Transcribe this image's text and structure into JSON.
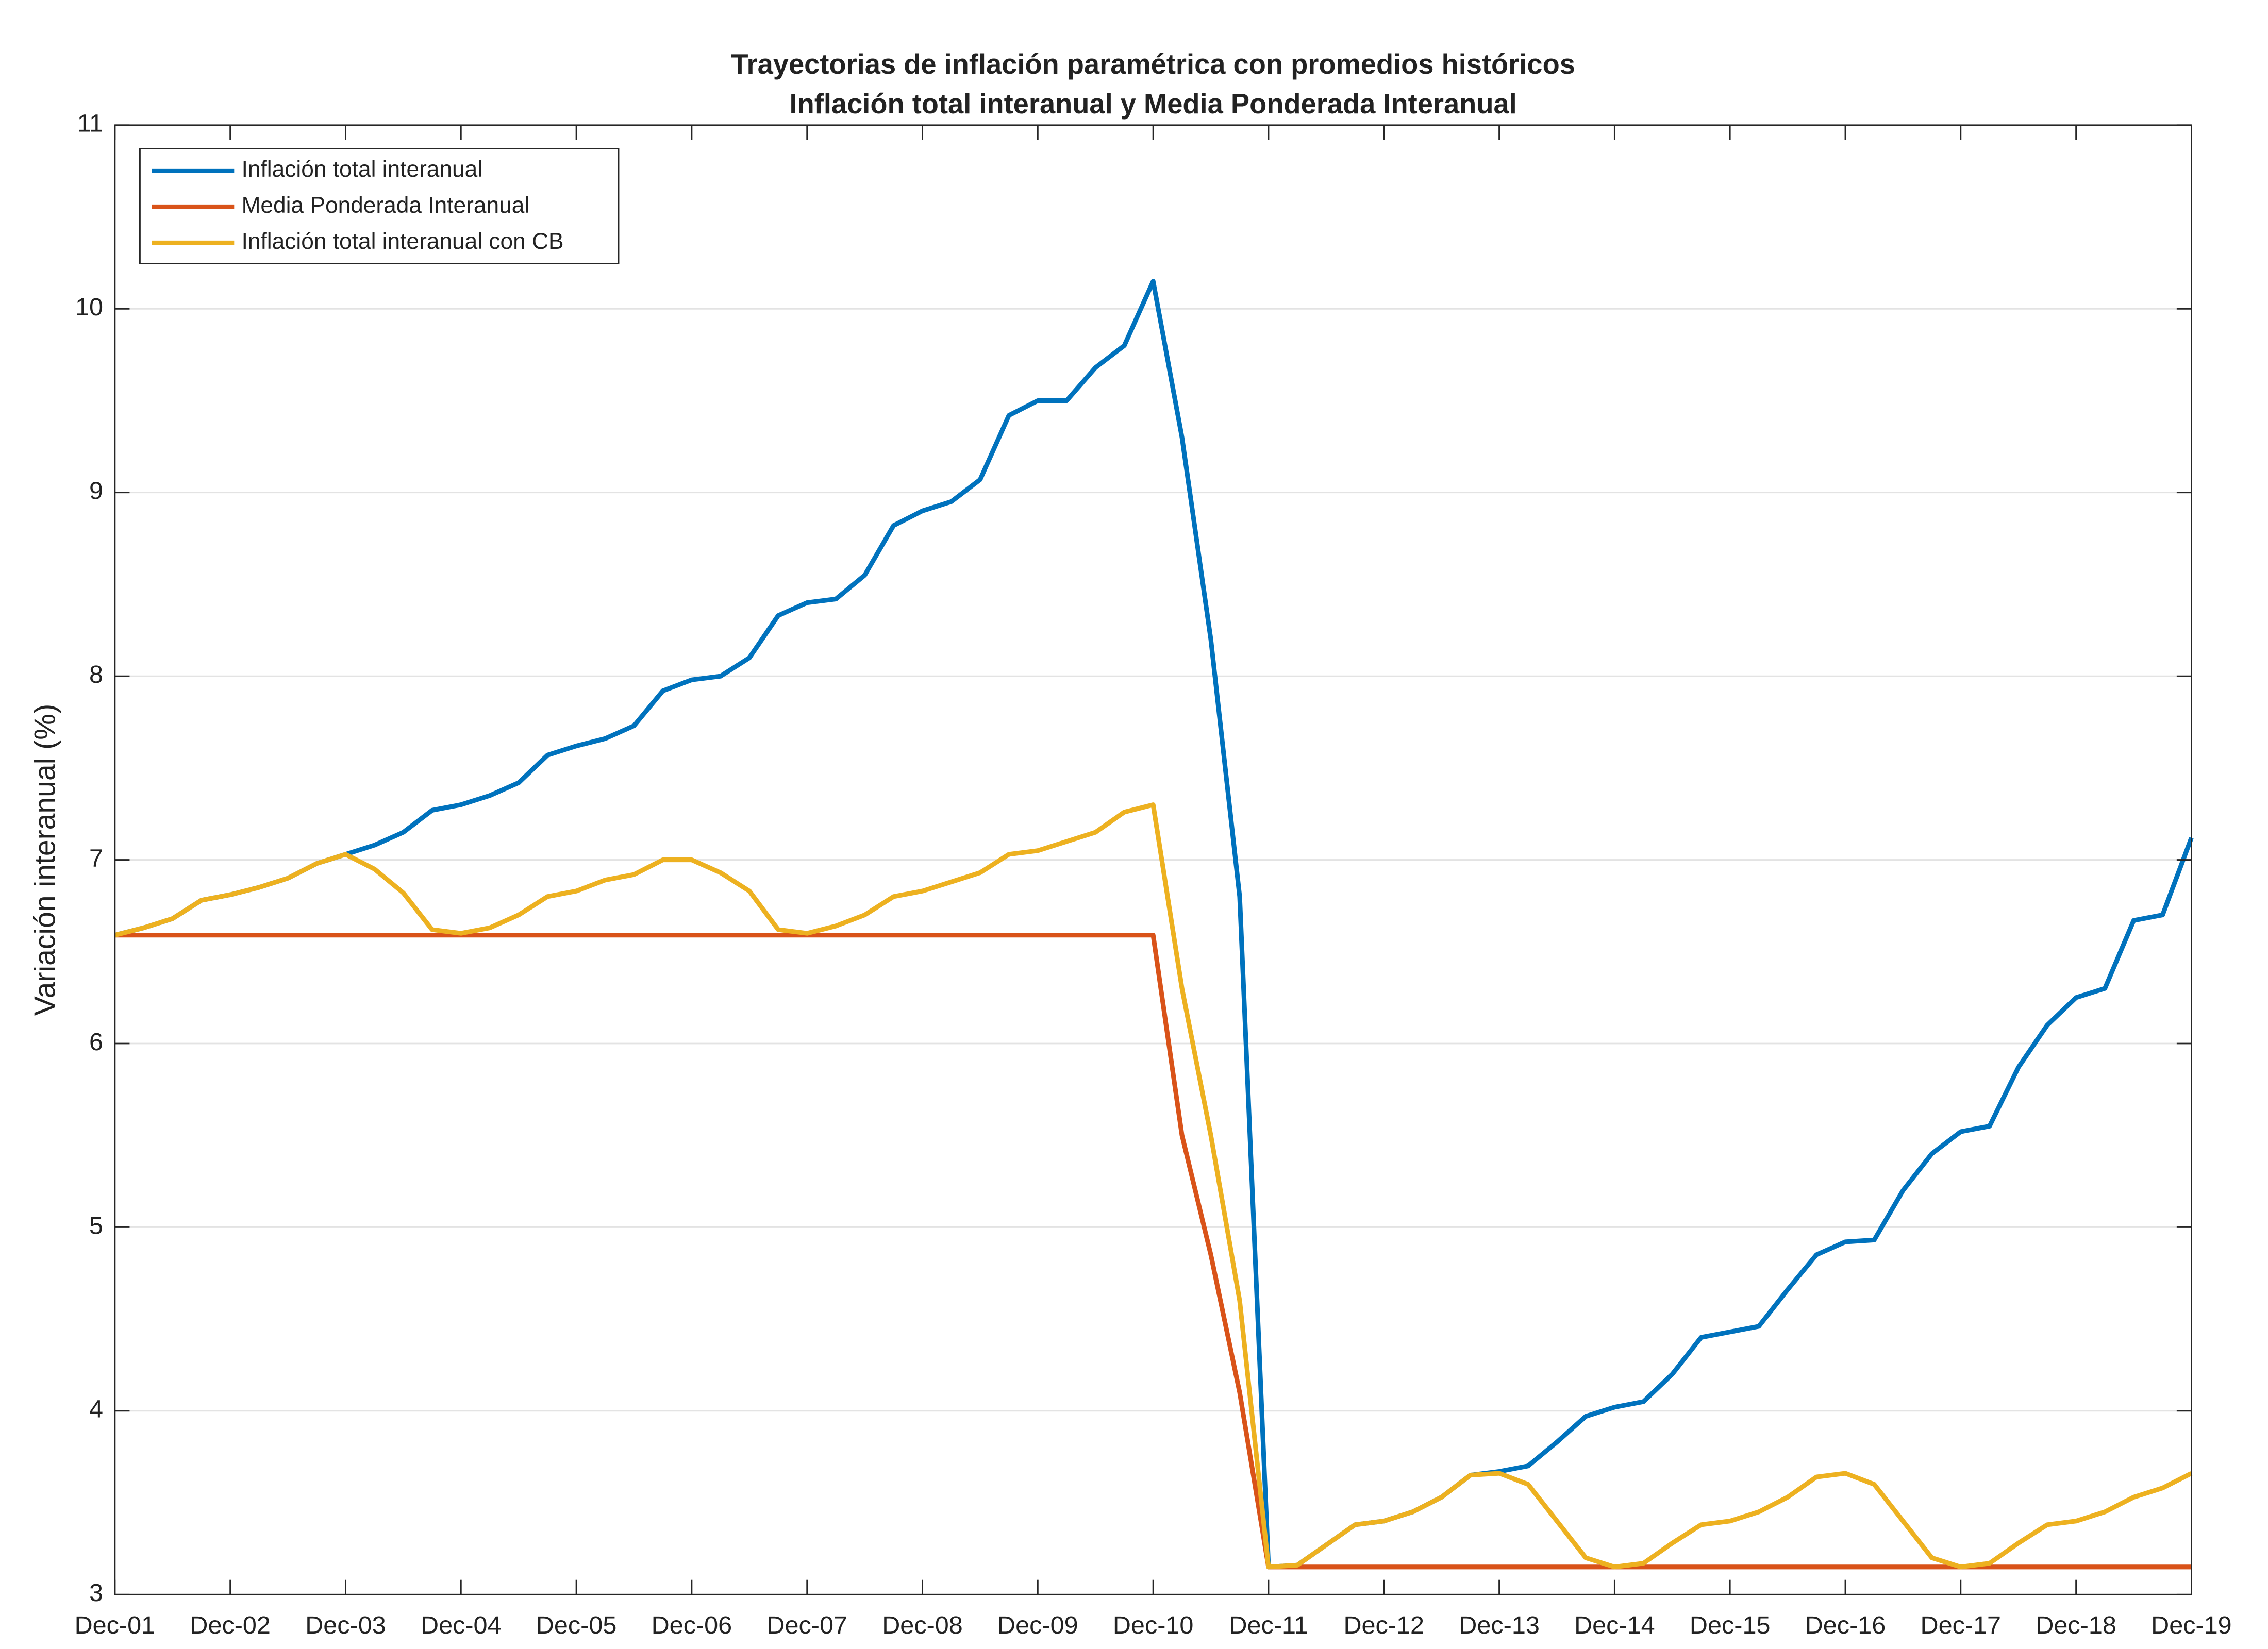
{
  "chart_data": {
    "type": "line",
    "title": "Trayectorias de inflación paramétrica con promedios históricos",
    "subtitle": "Inflación total interanual y Media Ponderada Interanual",
    "y_label": "Variación interanual (%)",
    "categories": [
      "Dec-01",
      null,
      null,
      null,
      "Dec-02",
      null,
      null,
      null,
      "Dec-03",
      null,
      null,
      null,
      "Dec-04",
      null,
      null,
      null,
      "Dec-05",
      null,
      null,
      null,
      "Dec-06",
      null,
      null,
      null,
      "Dec-07",
      null,
      null,
      null,
      "Dec-08",
      null,
      null,
      null,
      "Dec-09",
      null,
      null,
      null,
      "Dec-10",
      null,
      null,
      null,
      "Dec-11",
      null,
      null,
      null,
      "Dec-12",
      null,
      null,
      null,
      "Dec-13",
      null,
      null,
      null,
      "Dec-14",
      null,
      null,
      null,
      "Dec-15",
      null,
      null,
      null,
      "Dec-16",
      null,
      null,
      null,
      "Dec-17",
      null,
      null,
      null,
      "Dec-18",
      null,
      null,
      null,
      "Dec-19"
    ],
    "series": [
      {
        "name": "Inflación total interanual",
        "color": "#0072bd",
        "values": [
          6.59,
          6.63,
          6.68,
          6.78,
          6.81,
          6.85,
          6.9,
          6.98,
          7.03,
          7.08,
          7.15,
          7.27,
          7.3,
          7.35,
          7.42,
          7.57,
          7.62,
          7.66,
          7.73,
          7.92,
          7.98,
          8.0,
          8.1,
          8.33,
          8.4,
          8.42,
          8.55,
          8.82,
          8.9,
          8.95,
          9.07,
          9.42,
          9.5,
          9.5,
          9.68,
          9.8,
          10.15,
          9.3,
          8.2,
          6.8,
          3.15,
          3.16,
          3.27,
          3.38,
          3.4,
          3.45,
          3.53,
          3.65,
          3.67,
          3.7,
          3.83,
          3.97,
          4.02,
          4.05,
          4.2,
          4.4,
          4.43,
          4.46,
          4.66,
          4.85,
          4.92,
          4.93,
          5.2,
          5.4,
          5.52,
          5.55,
          5.87,
          6.1,
          6.25,
          6.3,
          6.67,
          6.7,
          7.12
        ]
      },
      {
        "name": "Media Ponderada Interanual",
        "color": "#d95319",
        "values": [
          6.59,
          6.59,
          6.59,
          6.59,
          6.59,
          6.59,
          6.59,
          6.59,
          6.59,
          6.59,
          6.59,
          6.59,
          6.59,
          6.59,
          6.59,
          6.59,
          6.59,
          6.59,
          6.59,
          6.59,
          6.59,
          6.59,
          6.59,
          6.59,
          6.59,
          6.59,
          6.59,
          6.59,
          6.59,
          6.59,
          6.59,
          6.59,
          6.59,
          6.59,
          6.59,
          6.59,
          6.59,
          5.5,
          4.85,
          4.1,
          3.15,
          3.15,
          3.15,
          3.15,
          3.15,
          3.15,
          3.15,
          3.15,
          3.15,
          3.15,
          3.15,
          3.15,
          3.15,
          3.15,
          3.15,
          3.15,
          3.15,
          3.15,
          3.15,
          3.15,
          3.15,
          3.15,
          3.15,
          3.15,
          3.15,
          3.15,
          3.15,
          3.15,
          3.15,
          3.15,
          3.15,
          3.15,
          3.15
        ]
      },
      {
        "name": "Inflación total interanual con CB",
        "color": "#edb120",
        "values": [
          6.59,
          6.63,
          6.68,
          6.78,
          6.81,
          6.85,
          6.9,
          6.98,
          7.03,
          6.95,
          6.82,
          6.62,
          6.6,
          6.63,
          6.7,
          6.8,
          6.83,
          6.89,
          6.92,
          7.0,
          7.0,
          6.93,
          6.83,
          6.62,
          6.6,
          6.64,
          6.7,
          6.8,
          6.83,
          6.88,
          6.93,
          7.03,
          7.05,
          7.1,
          7.15,
          7.26,
          7.3,
          6.3,
          5.5,
          4.6,
          3.15,
          3.16,
          3.27,
          3.38,
          3.4,
          3.45,
          3.53,
          3.65,
          3.66,
          3.6,
          3.4,
          3.2,
          3.15,
          3.17,
          3.28,
          3.38,
          3.4,
          3.45,
          3.53,
          3.64,
          3.66,
          3.6,
          3.4,
          3.2,
          3.15,
          3.17,
          3.28,
          3.38,
          3.4,
          3.45,
          3.53,
          3.58,
          3.66
        ]
      }
    ],
    "ylim": [
      3,
      11
    ],
    "yticks": [
      3,
      4,
      5,
      6,
      7,
      8,
      9,
      10,
      11
    ],
    "grid": true,
    "legend": "upper left"
  }
}
